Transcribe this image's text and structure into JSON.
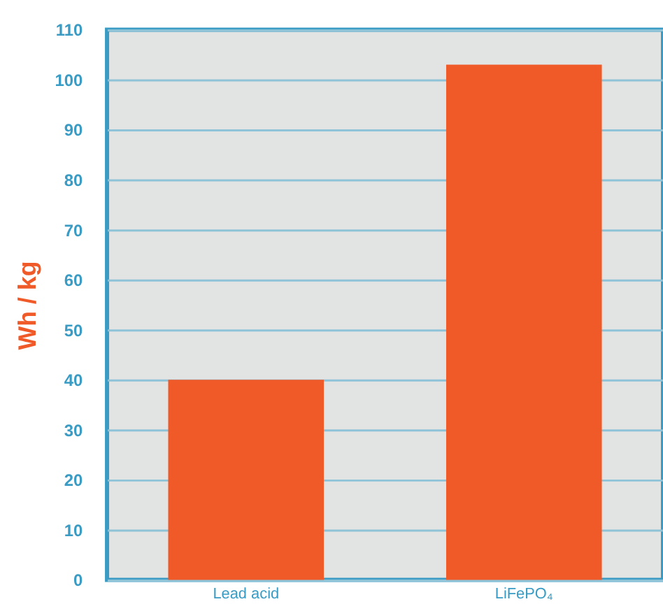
{
  "chart_data": {
    "type": "bar",
    "ylabel": "Wh / kg",
    "categories": [
      "Lead acid",
      "LiFePO₄"
    ],
    "values": [
      40,
      103
    ],
    "color": "#f05a28",
    "ylim": [
      0,
      110
    ],
    "yticks": [
      0,
      10,
      20,
      30,
      40,
      50,
      60,
      70,
      80,
      90,
      100,
      110
    ],
    "grid": "y"
  }
}
